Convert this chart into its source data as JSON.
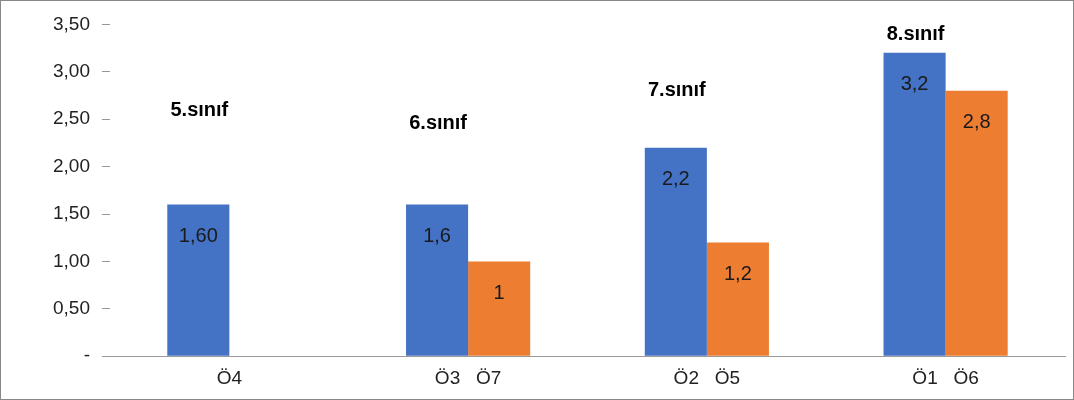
{
  "chart_data": {
    "type": "bar",
    "categories": [
      "Ö4",
      "Ö3   Ö7",
      "Ö2   Ö5",
      "Ö1   Ö6"
    ],
    "series": [
      {
        "color": "#4472c4",
        "values": [
          1.6,
          1.6,
          2.2,
          3.2
        ],
        "value_labels": [
          "1,60",
          "1,6",
          "2,2",
          "3,2"
        ]
      },
      {
        "color": "#ed7d31",
        "values": [
          null,
          1,
          1.2,
          2.8
        ],
        "value_labels": [
          null,
          "1",
          "1,2",
          "2,8"
        ]
      }
    ],
    "ylim": [
      0,
      3.5
    ],
    "yticks": [
      {
        "value": 0,
        "label": "-"
      },
      {
        "value": 0.5,
        "label": "0,50"
      },
      {
        "value": 1,
        "label": "1,00"
      },
      {
        "value": 1.5,
        "label": "1,50"
      },
      {
        "value": 2,
        "label": "2,00"
      },
      {
        "value": 2.5,
        "label": "2,50"
      },
      {
        "value": 3,
        "label": "3,00"
      },
      {
        "value": 3.5,
        "label": "3,50"
      }
    ],
    "grid": false,
    "legend": false,
    "annotations": [
      "5.sınıf",
      "6.sınıf",
      "7.sınıf",
      "8.sınıf"
    ]
  }
}
